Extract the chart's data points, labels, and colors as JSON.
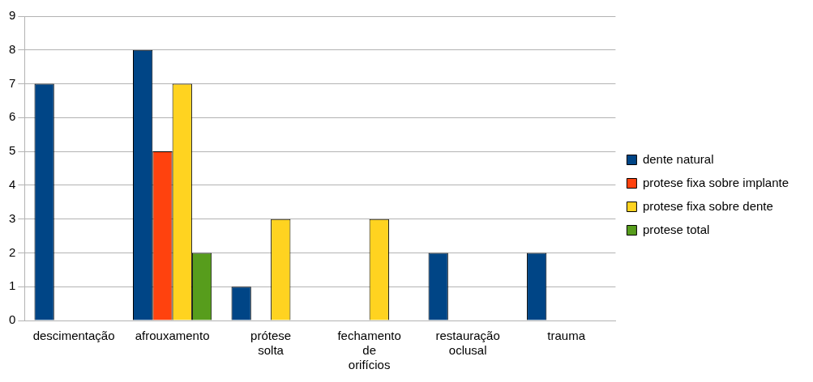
{
  "chart_data": {
    "type": "bar",
    "categories": [
      "descimentação",
      "afrouxamento",
      "prótese solta",
      "fechamento de orifícios",
      "restauração oclusal",
      "trauma"
    ],
    "series": [
      {
        "name": "dente natural",
        "color": "#004586",
        "values": [
          7,
          8,
          1,
          null,
          2,
          2
        ]
      },
      {
        "name": "protese fixa sobre implante",
        "color": "#ff420e",
        "values": [
          null,
          5,
          null,
          null,
          null,
          null
        ]
      },
      {
        "name": "protese fixa sobre dente",
        "color": "#ffd320",
        "values": [
          null,
          7,
          3,
          3,
          null,
          null
        ]
      },
      {
        "name": "protese total",
        "color": "#579d1c",
        "values": [
          null,
          2,
          null,
          null,
          null,
          null
        ]
      }
    ],
    "ylim": [
      0,
      9
    ],
    "yticks": [
      0,
      1,
      2,
      3,
      4,
      5,
      6,
      7,
      8,
      9
    ],
    "grid": "y",
    "legend": "right"
  }
}
